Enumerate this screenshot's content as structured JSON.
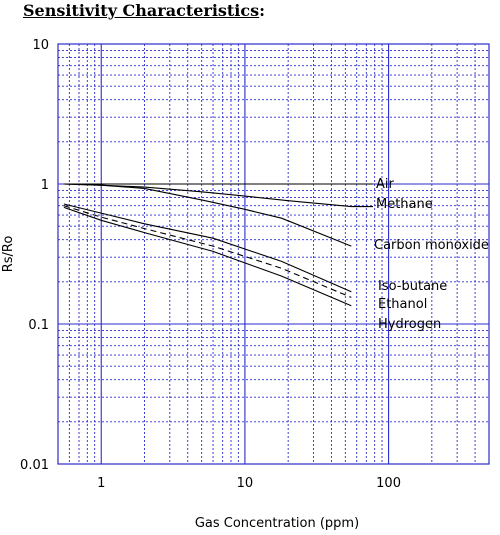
{
  "page_heading": {
    "title": "Sensitivity Characteristics",
    "suffix": ":"
  },
  "colors": {
    "grid": "#2b2bcc",
    "line": "#000000"
  },
  "chart_data": {
    "type": "line",
    "x_scale": "log",
    "y_scale": "log",
    "xlabel": "Gas Concentration (ppm)",
    "ylabel": "Rs/Ro",
    "xlim": [
      0.5,
      500
    ],
    "ylim": [
      0.01,
      10
    ],
    "x_ticks": [
      {
        "value": 1,
        "label": "1"
      },
      {
        "value": 10,
        "label": "10"
      },
      {
        "value": 100,
        "label": "100"
      }
    ],
    "y_ticks": [
      {
        "value": 10,
        "label": "10"
      },
      {
        "value": 1,
        "label": "1"
      },
      {
        "value": 0.1,
        "label": "0.1"
      },
      {
        "value": 0.01,
        "label": "0.01"
      }
    ],
    "grid": true,
    "series": [
      {
        "name": "Air",
        "style": "solid",
        "x": [
          0.55,
          55
        ],
        "y": [
          1.0,
          1.0
        ]
      },
      {
        "name": "Methane",
        "style": "solid",
        "x": [
          0.55,
          1,
          2,
          5,
          10,
          20,
          55
        ],
        "y": [
          1.0,
          0.98,
          0.95,
          0.88,
          0.82,
          0.76,
          0.69
        ]
      },
      {
        "name": "Carbon monoxide",
        "style": "solid",
        "x": [
          0.55,
          1,
          2,
          5,
          10,
          18,
          55
        ],
        "y": [
          1.0,
          0.98,
          0.93,
          0.77,
          0.66,
          0.57,
          0.36
        ]
      },
      {
        "name": "Iso-butane",
        "style": "solid",
        "x": [
          0.55,
          1,
          2,
          6,
          18,
          55
        ],
        "y": [
          0.72,
          0.62,
          0.52,
          0.41,
          0.28,
          0.17
        ]
      },
      {
        "name": "Ethanol",
        "style": "dashed",
        "x": [
          0.55,
          1,
          2,
          6,
          18,
          55
        ],
        "y": [
          0.7,
          0.58,
          0.48,
          0.36,
          0.25,
          0.155
        ]
      },
      {
        "name": "Hydrogen",
        "style": "solid",
        "x": [
          0.55,
          1,
          2,
          6,
          18,
          55
        ],
        "y": [
          0.68,
          0.55,
          0.45,
          0.33,
          0.22,
          0.135
        ]
      }
    ]
  }
}
